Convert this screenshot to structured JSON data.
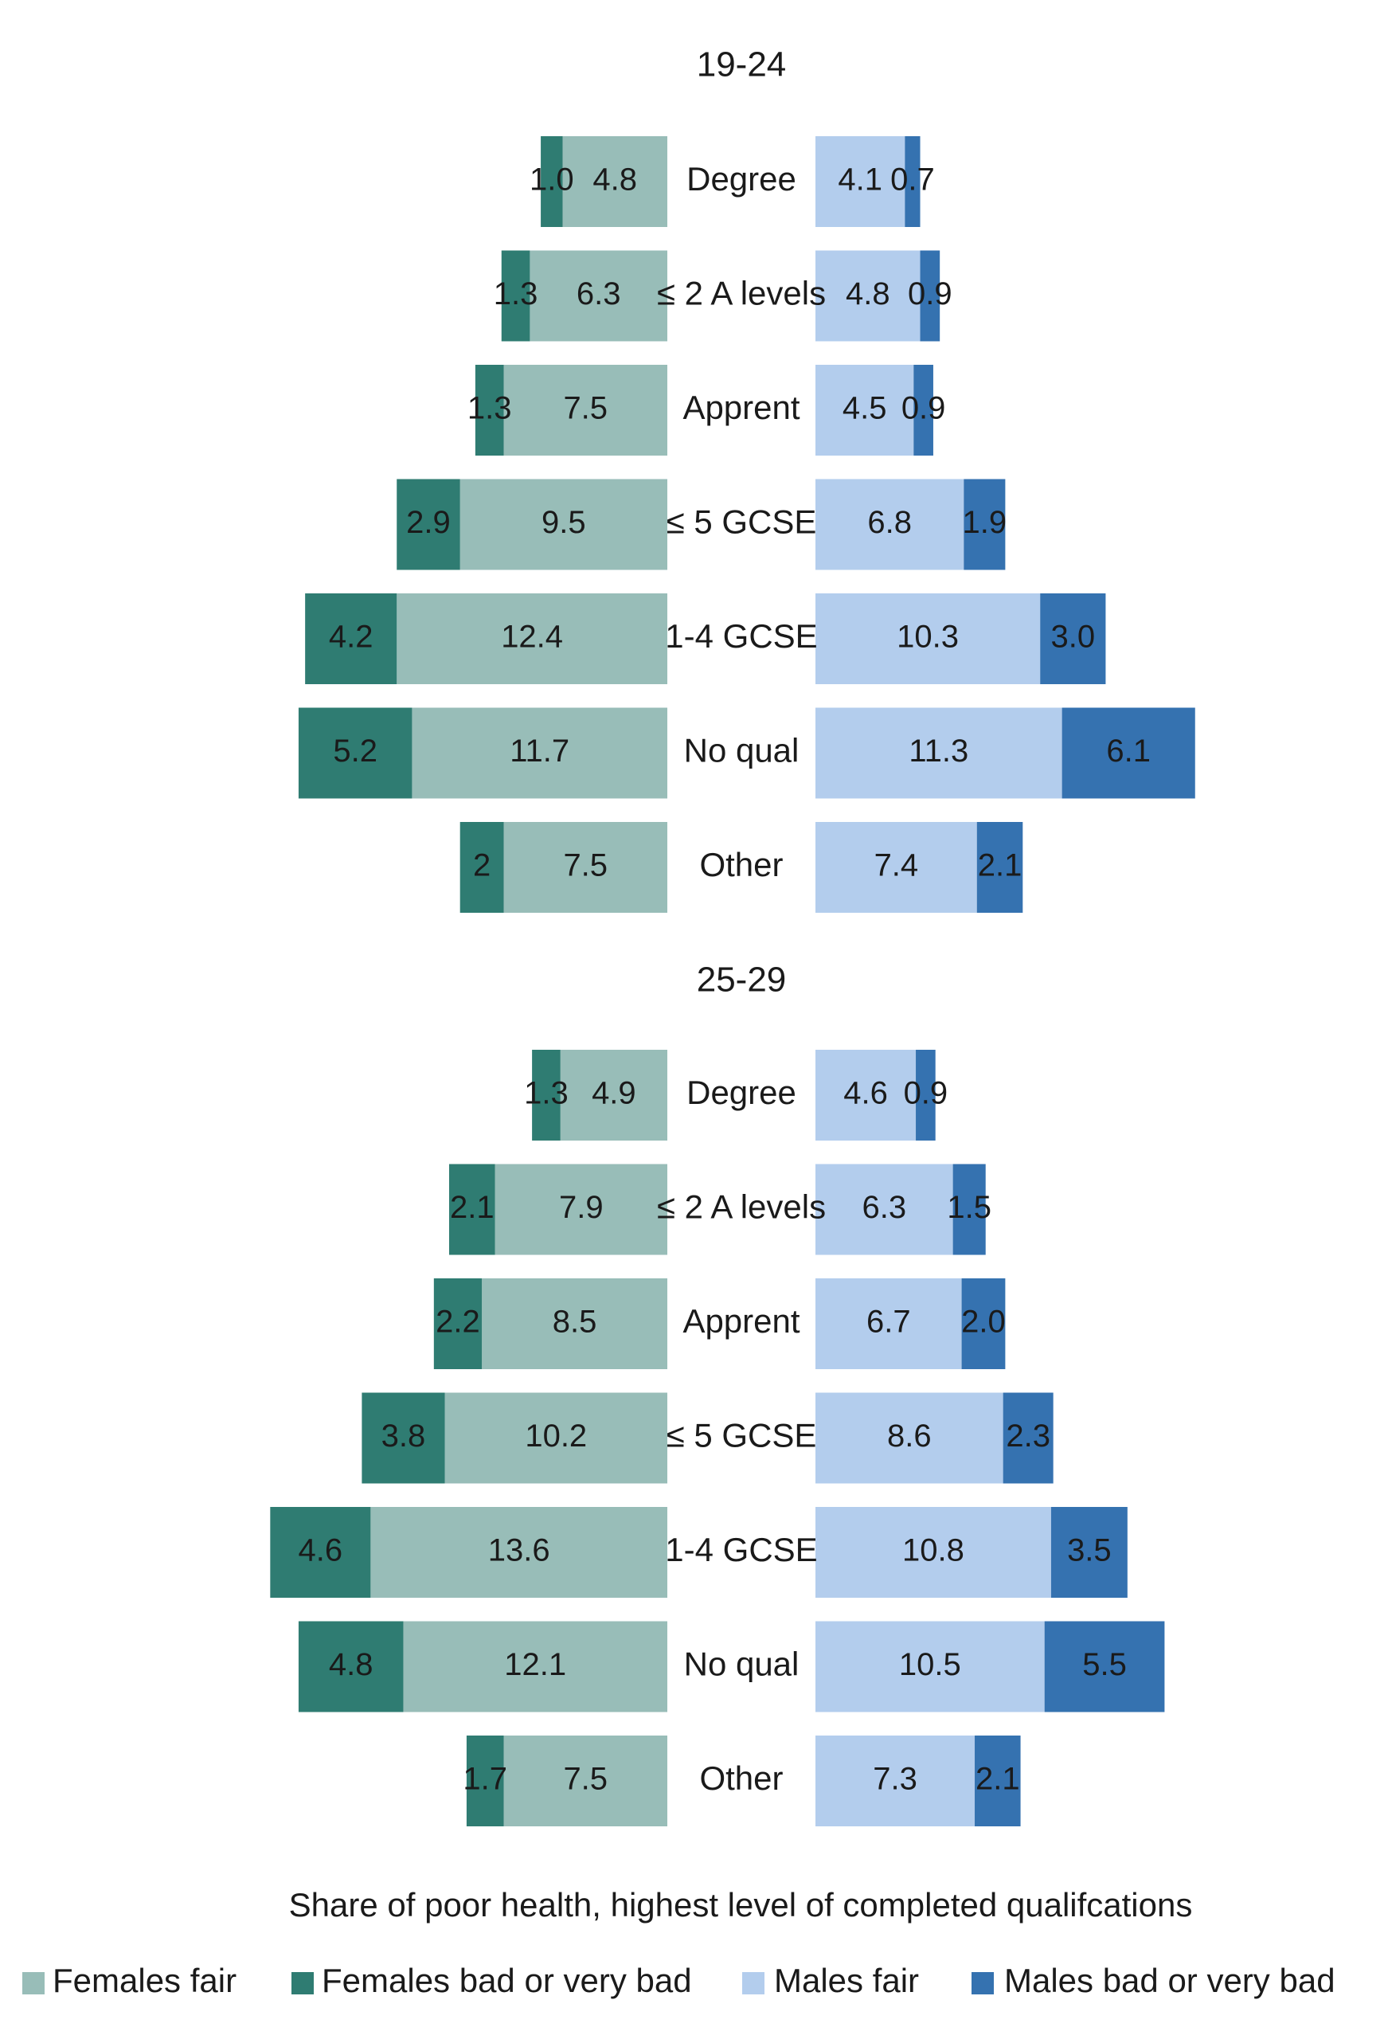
{
  "chart_data": {
    "type": "bar",
    "orientation": "horizontal-diverging",
    "caption": "Share of poor health, highest level of completed qualifcations",
    "categories": [
      "Degree",
      "≤ 2 A levels",
      "Apprent",
      "≤ 5 GCSE",
      "1-4 GCSE",
      "No qual",
      "Other"
    ],
    "panels": [
      {
        "title": "19-24",
        "series": [
          {
            "name": "Females fair",
            "values": [
              4.8,
              6.3,
              7.5,
              9.5,
              12.4,
              11.7,
              7.5
            ],
            "labels": [
              "4.8",
              "6.3",
              "7.5",
              "9.5",
              "12.4",
              "11.7",
              "7.5"
            ]
          },
          {
            "name": "Females bad or very bad",
            "values": [
              1.0,
              1.3,
              1.3,
              2.9,
              4.2,
              5.2,
              2.0
            ],
            "labels": [
              "1.0",
              "1.3",
              "1.3",
              "2.9",
              "4.2",
              "5.2",
              "2"
            ]
          },
          {
            "name": "Males fair",
            "values": [
              4.1,
              4.8,
              4.5,
              6.8,
              10.3,
              11.3,
              7.4
            ],
            "labels": [
              "4.1",
              "4.8",
              "4.5",
              "6.8",
              "10.3",
              "11.3",
              "7.4"
            ]
          },
          {
            "name": "Males bad or very bad",
            "values": [
              0.7,
              0.9,
              0.9,
              1.9,
              3.0,
              6.1,
              2.1
            ],
            "labels": [
              "0.7",
              "0.9",
              "0.9",
              "1.9",
              "3.0",
              "6.1",
              "2.1"
            ]
          }
        ]
      },
      {
        "title": "25-29",
        "series": [
          {
            "name": "Females fair",
            "values": [
              4.9,
              7.9,
              8.5,
              10.2,
              13.6,
              12.1,
              7.5
            ],
            "labels": [
              "4.9",
              "7.9",
              "8.5",
              "10.2",
              "13.6",
              "12.1",
              "7.5"
            ]
          },
          {
            "name": "Females bad or very bad",
            "values": [
              1.3,
              2.1,
              2.2,
              3.8,
              4.6,
              4.8,
              1.7
            ],
            "labels": [
              "1.3",
              "2.1",
              "2.2",
              "3.8",
              "4.6",
              "4.8",
              "1.7"
            ]
          },
          {
            "name": "Males fair",
            "values": [
              4.6,
              6.3,
              6.7,
              8.6,
              10.8,
              10.5,
              7.3
            ],
            "labels": [
              "4.6",
              "6.3",
              "6.7",
              "8.6",
              "10.8",
              "10.5",
              "7.3"
            ]
          },
          {
            "name": "Males bad or very bad",
            "values": [
              0.9,
              1.5,
              2.0,
              2.3,
              3.5,
              5.5,
              2.1
            ],
            "labels": [
              "0.9",
              "1.5",
              "2.0",
              "2.3",
              "3.5",
              "5.5",
              "2.1"
            ]
          }
        ]
      }
    ],
    "legend": {
      "position": "bottom",
      "items": [
        {
          "name": "Females fair",
          "color": "#98BDB8"
        },
        {
          "name": "Females bad or very bad",
          "color": "#2F7C72"
        },
        {
          "name": "Males fair",
          "color": "#B3CDED"
        },
        {
          "name": "Males bad or very bad",
          "color": "#3572B0"
        }
      ]
    },
    "colors": {
      "females_fair": "#98BDB8",
      "females_bad": "#2F7C72",
      "males_fair": "#B3CDED",
      "males_bad": "#3572B0"
    }
  }
}
